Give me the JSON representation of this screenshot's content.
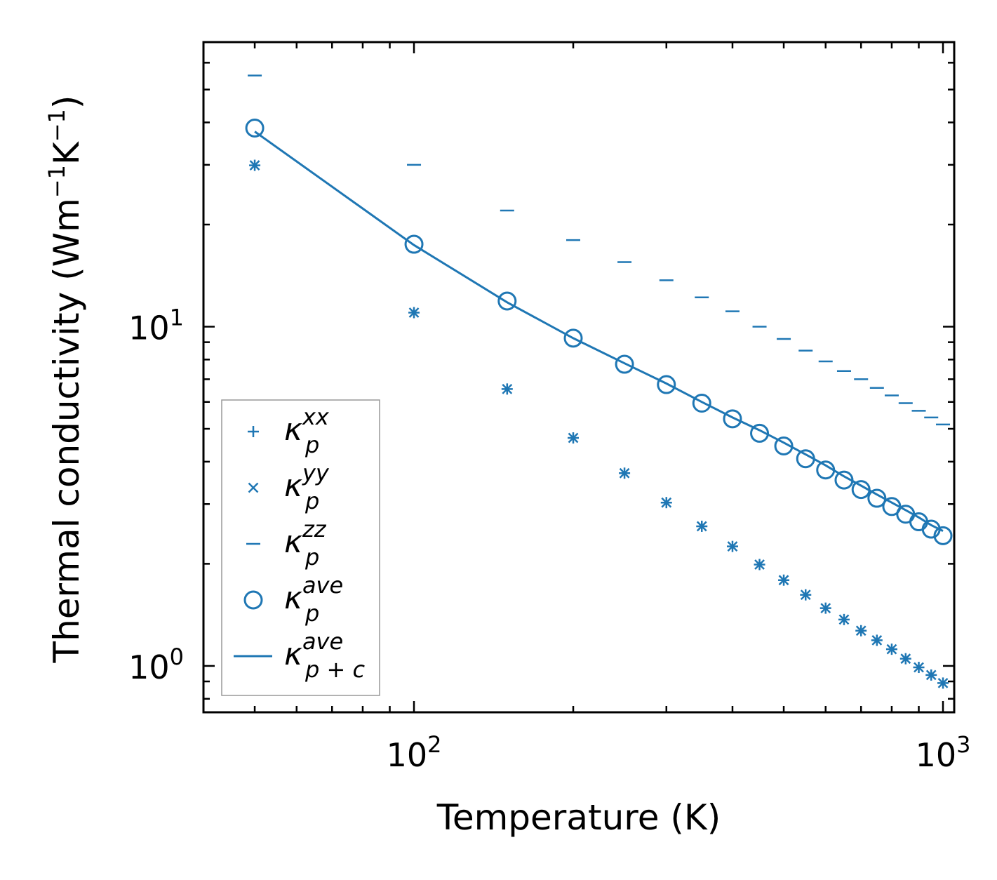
{
  "chart_data": {
    "type": "scatter",
    "xscale": "log",
    "yscale": "log",
    "xlabel": "Temperature (K)",
    "ylabel": "Thermal conductivity (Wm",
    "ylabel_sup1": "−1",
    "ylabel_mid": "K",
    "ylabel_sup2": "−1",
    "ylabel_end": ")",
    "xlim": [
      40,
      1050
    ],
    "ylim": [
      0.73,
      69
    ],
    "xticks": [
      {
        "value": 100,
        "base": "10",
        "exp": "2"
      },
      {
        "value": 1000,
        "base": "10",
        "exp": "3"
      }
    ],
    "yticks": [
      {
        "value": 1,
        "base": "10",
        "exp": "0"
      },
      {
        "value": 10,
        "base": "10",
        "exp": "1"
      }
    ],
    "color": "#1f77b4",
    "x": [
      50,
      100,
      150,
      200,
      250,
      300,
      350,
      400,
      450,
      500,
      550,
      600,
      650,
      700,
      750,
      800,
      850,
      900,
      950,
      1000
    ],
    "series": [
      {
        "name": "xx",
        "marker": "plus",
        "values": [
          29.9,
          11.0,
          6.55,
          4.7,
          3.7,
          3.03,
          2.58,
          2.25,
          1.99,
          1.79,
          1.62,
          1.48,
          1.37,
          1.27,
          1.19,
          1.12,
          1.05,
          0.99,
          0.94,
          0.89
        ]
      },
      {
        "name": "yy",
        "marker": "x",
        "values": [
          29.9,
          11.0,
          6.55,
          4.7,
          3.7,
          3.03,
          2.58,
          2.25,
          1.99,
          1.79,
          1.62,
          1.48,
          1.37,
          1.27,
          1.19,
          1.12,
          1.05,
          0.99,
          0.94,
          0.89
        ]
      },
      {
        "name": "zz",
        "marker": "hline",
        "values": [
          55.0,
          30.0,
          22.0,
          18.0,
          15.5,
          13.7,
          12.2,
          11.1,
          10.0,
          9.2,
          8.5,
          7.9,
          7.4,
          7.0,
          6.6,
          6.27,
          5.95,
          5.65,
          5.4,
          5.15
        ]
      },
      {
        "name": "ave",
        "marker": "circle",
        "values": [
          38.5,
          17.5,
          11.9,
          9.25,
          7.75,
          6.75,
          5.95,
          5.35,
          4.85,
          4.45,
          4.08,
          3.78,
          3.53,
          3.31,
          3.12,
          2.95,
          2.8,
          2.66,
          2.53,
          2.42
        ]
      },
      {
        "name": "ave_pc",
        "marker": "line",
        "values": [
          37.6,
          17.4,
          11.8,
          9.25,
          7.8,
          6.8,
          6.0,
          5.4,
          4.95,
          4.55,
          4.2,
          3.9,
          3.62,
          3.4,
          3.2,
          3.03,
          2.88,
          2.74,
          2.6,
          2.5
        ]
      }
    ],
    "legend": {
      "position": "lower-left",
      "entries": [
        {
          "marker": "plus",
          "sym": "κ",
          "sup": "xx",
          "sub": "p"
        },
        {
          "marker": "x",
          "sym": "κ",
          "sup": "yy",
          "sub": "p"
        },
        {
          "marker": "hline",
          "sym": "κ",
          "sup": "zz",
          "sub": "p"
        },
        {
          "marker": "circle",
          "sym": "κ",
          "sup": "ave",
          "sub": "p"
        },
        {
          "marker": "line",
          "sym": "κ",
          "sup": "ave",
          "sub": "p + c"
        }
      ]
    }
  }
}
